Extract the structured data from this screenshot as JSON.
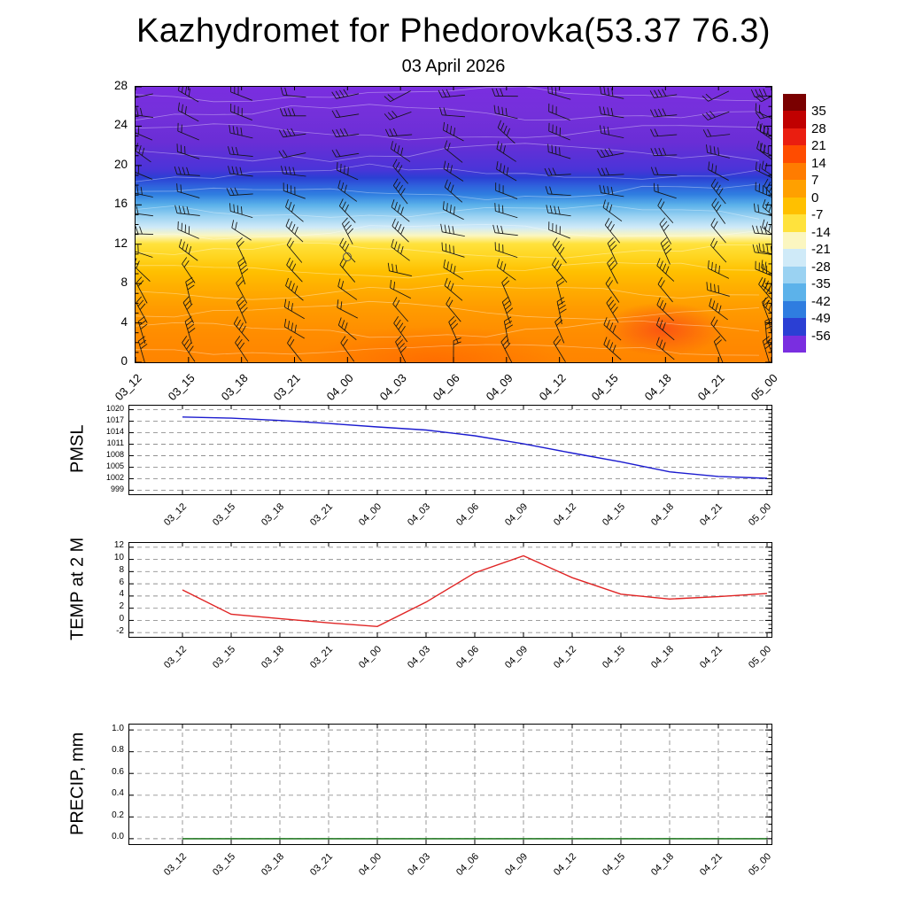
{
  "title": "Kazhydromet for Phedorovka(53.37 76.3)",
  "subtitle": "03 April 2026",
  "chart_data": [
    {
      "type": "heatmap",
      "name": "temperature time-height cross-section",
      "overlay": "wind barbs",
      "x": [
        "03_12",
        "03_15",
        "03_18",
        "03_21",
        "04_00",
        "04_03",
        "04_06",
        "04_09",
        "04_12",
        "04_15",
        "04_18",
        "04_21",
        "05_00"
      ],
      "ylim": [
        0,
        28
      ],
      "yticks": [
        0,
        4,
        8,
        12,
        16,
        20,
        24,
        28
      ],
      "colorbar_ticks": [
        "35",
        "28",
        "21",
        "14",
        "7",
        "0",
        "-7",
        "-14",
        "-21",
        "-28",
        "-35",
        "-42",
        "-49",
        "-56"
      ],
      "colorbar_colors": [
        "#7a0000",
        "#c00000",
        "#ea1e10",
        "#ff4c00",
        "#ff7c00",
        "#ffa000",
        "#ffc000",
        "#ffe23c",
        "#fbf6c0",
        "#cfeaf8",
        "#9ad2f2",
        "#5cb2ea",
        "#2f7de0",
        "#2b3fd4",
        "#7a2ee0"
      ]
    },
    {
      "type": "line",
      "name": "PMSL",
      "color": "#1b1bcf",
      "ylim": [
        999,
        1020
      ],
      "yticks": [
        1020,
        1017,
        1014,
        1011,
        1008,
        1005,
        1002,
        999
      ],
      "x": [
        "03_12",
        "03_15",
        "03_18",
        "03_21",
        "04_00",
        "04_03",
        "04_06",
        "04_09",
        "04_12",
        "04_15",
        "04_18",
        "04_21",
        "05_00"
      ],
      "values": [
        1018.1,
        1017.8,
        1017.2,
        1016.4,
        1015.5,
        1014.7,
        1013.2,
        1011.1,
        1008.7,
        1006.4,
        1003.8,
        1002.6,
        1002.1
      ]
    },
    {
      "type": "line",
      "name": "TEMP at 2 M",
      "color": "#e02424",
      "ylim": [
        -2,
        12
      ],
      "yticks": [
        12,
        10,
        8,
        6,
        4,
        2,
        0,
        -2
      ],
      "x": [
        "03_12",
        "03_15",
        "03_18",
        "03_21",
        "04_00",
        "04_03",
        "04_06",
        "04_09",
        "04_12",
        "04_15",
        "04_18",
        "04_21",
        "05_00"
      ],
      "values": [
        5.0,
        1.0,
        0.3,
        -0.4,
        -1.0,
        3.0,
        7.8,
        10.6,
        7.0,
        4.3,
        3.5,
        3.9,
        4.4
      ]
    },
    {
      "type": "line",
      "name": "PRECIP, mm",
      "color": "#006400",
      "ylim": [
        0,
        1
      ],
      "yticks": [
        "1.0",
        "0.8",
        "0.6",
        "0.4",
        "0.2",
        "0.0"
      ],
      "vgrid": true,
      "x": [
        "03_12",
        "03_15",
        "03_18",
        "03_21",
        "04_00",
        "04_03",
        "04_06",
        "04_09",
        "04_12",
        "04_15",
        "04_18",
        "04_21",
        "05_00"
      ],
      "values": [
        0,
        0,
        0,
        0,
        0,
        0,
        0,
        0,
        0,
        0,
        0,
        0,
        0
      ]
    }
  ]
}
